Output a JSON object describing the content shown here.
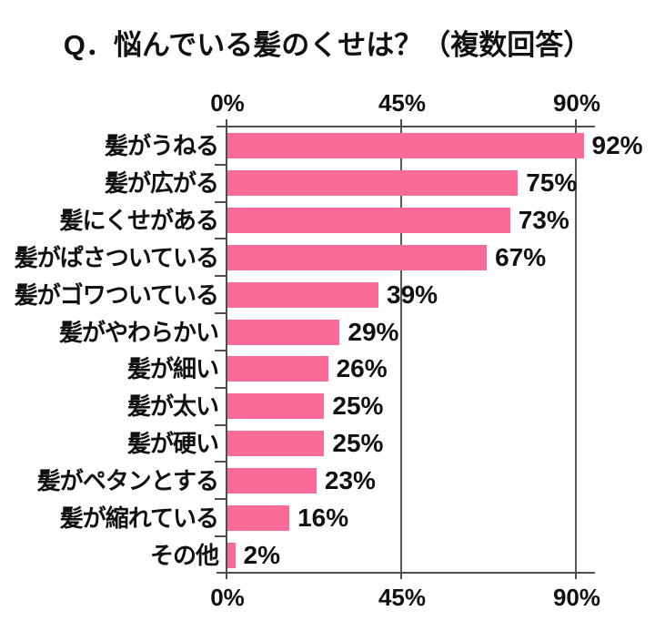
{
  "title": "Q．悩んでいる髪のくせは？（複数回答）",
  "chart_data": {
    "type": "bar",
    "orientation": "horizontal",
    "title": "Q．悩んでいる髪のくせは？（複数回答）",
    "categories": [
      "髪がうねる",
      "髪が広がる",
      "髪にくせがある",
      "髪がぱさついている",
      "髪がゴワついている",
      "髪がやわらかい",
      "髪が細い",
      "髪が太い",
      "髪が硬い",
      "髪がペタンとする",
      "髪が縮れている",
      "その他"
    ],
    "values": [
      92,
      75,
      73,
      67,
      39,
      29,
      26,
      25,
      25,
      23,
      16,
      2
    ],
    "value_labels": [
      "92%",
      "75%",
      "73%",
      "67%",
      "39%",
      "29%",
      "26%",
      "25%",
      "25%",
      "23%",
      "16%",
      "2%"
    ],
    "axis_tick_labels": [
      "0%",
      "45%",
      "90%"
    ],
    "xlim": [
      0,
      90
    ],
    "gridlines_at": [
      45,
      90
    ],
    "axis_ticks_top_and_bottom": true,
    "legend": false,
    "bar_color": "#fa6b98",
    "axis_color": "#4d4d4d",
    "text_color": "#111111"
  }
}
